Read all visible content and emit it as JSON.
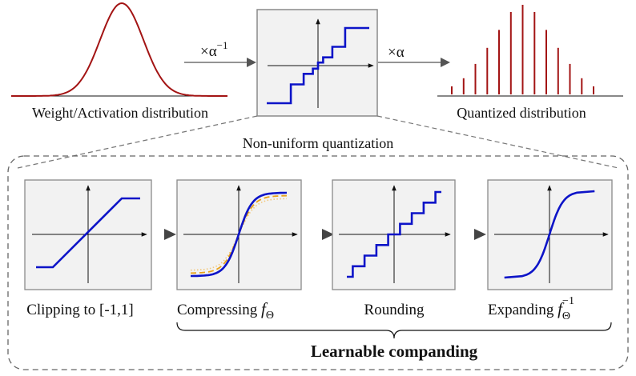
{
  "top": {
    "weight_label": "Weight/Activation distribution",
    "scale_in_label": "×α",
    "scale_in_exponent": "−1",
    "scale_out_label": "×α",
    "quantized_label": "Quantized distribution",
    "nonuniform_label": "Non-uniform quantization",
    "quantized_bars": [
      0.09,
      0.18,
      0.34,
      0.52,
      0.72,
      0.92,
      1.0,
      0.92,
      0.72,
      0.52,
      0.34,
      0.18,
      0.09
    ]
  },
  "steps": {
    "clipping_label": "Clipping to [-1,1]",
    "compressing_label": "Compressing ",
    "rounding_label": "Rounding",
    "expanding_label": "Expanding ",
    "f_symbol": "f",
    "theta_symbol": "Θ",
    "inverse_exponent": "−1"
  },
  "bottom": {
    "learnable_label": "Learnable companding"
  },
  "colors": {
    "curve": "#0d14c8",
    "gaussian": "#a31414",
    "bars": "#a31414",
    "dashed": "#e8a21a",
    "dotted": "#f3c77a",
    "panel_fill": "#f2f2f2",
    "panel_border": "#8a8a8a"
  }
}
